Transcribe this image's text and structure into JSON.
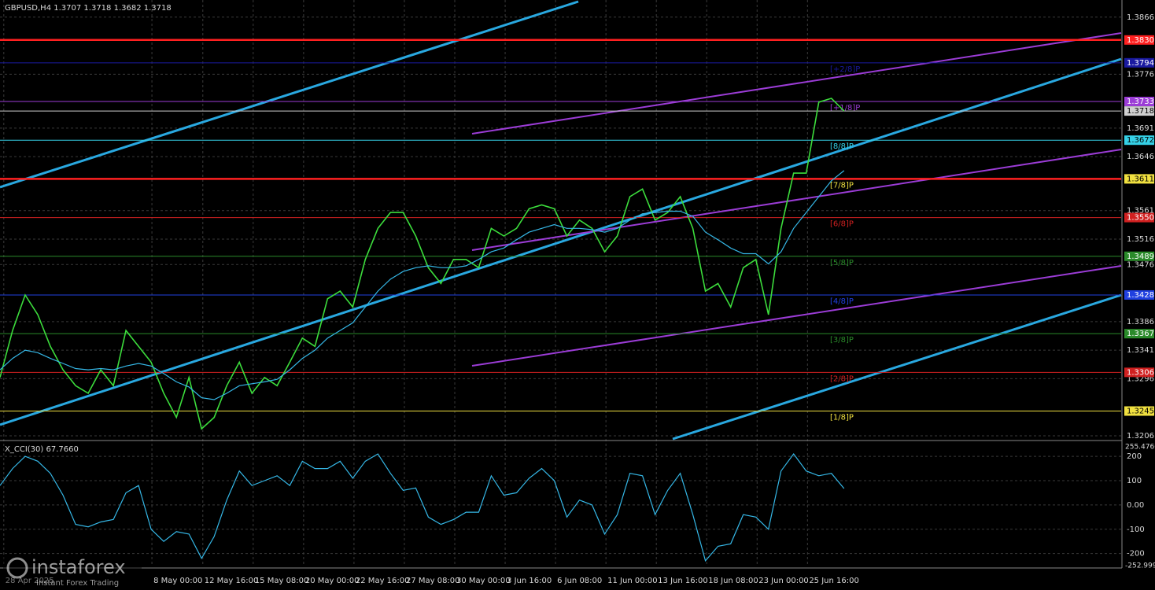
{
  "chart_data": [
    {
      "type": "line",
      "title": "GBPUSD,H4  1.3707 1.3718 1.3682 1.3718",
      "xlim": [
        0,
        89
      ],
      "ylim": [
        1.3201,
        1.3893
      ],
      "yticks": [
        1.3866,
        1.3776,
        1.3691,
        1.3646,
        1.3561,
        1.3516,
        1.3476,
        1.3386,
        1.3341,
        1.3296,
        1.3206
      ],
      "xticks": [
        {
          "value": 0.3,
          "label": "28 Apr 2025"
        },
        {
          "value": 12.06,
          "label": "8 May 00:00"
        },
        {
          "value": 16.1,
          "label": "12 May 16:00"
        },
        {
          "value": 20.1,
          "label": "15 May 08:00"
        },
        {
          "value": 24.1,
          "label": "20 May 00:00"
        },
        {
          "value": 28.1,
          "label": "22 May 16:00"
        },
        {
          "value": 32.1,
          "label": "27 May 08:00"
        },
        {
          "value": 36.1,
          "label": "30 May 00:00"
        },
        {
          "value": 40.1,
          "label": "3 Jun 16:00"
        },
        {
          "value": 44.1,
          "label": "6 Jun 08:00"
        },
        {
          "value": 48.1,
          "label": "11 Jun 00:00"
        },
        {
          "value": 52.1,
          "label": "13 Jun 16:00"
        },
        {
          "value": 56.1,
          "label": "18 Jun 08:00"
        },
        {
          "value": 60.1,
          "label": "23 Jun 00:00"
        },
        {
          "value": 64.1,
          "label": "25 Jun 16:00"
        }
      ],
      "grid": true,
      "x": [
        0,
        1,
        2,
        3,
        4,
        5,
        6,
        7,
        8,
        9,
        10,
        11,
        12,
        13,
        14,
        15,
        16,
        17,
        18,
        19,
        20,
        21,
        22,
        23,
        24,
        25,
        26,
        27,
        28,
        29,
        30,
        31,
        32,
        33,
        34,
        35,
        36,
        37,
        38,
        39,
        40,
        41,
        42,
        43,
        44,
        45,
        46,
        47,
        48,
        49,
        50,
        51,
        52,
        53,
        54,
        55,
        56,
        57,
        58,
        59,
        60,
        61,
        62,
        63,
        64,
        65,
        66,
        67
      ],
      "series": [
        {
          "color": "#3cdc3c",
          "values": [
            1.3298,
            1.3372,
            1.3428,
            1.3397,
            1.3347,
            1.331,
            1.3285,
            1.3273,
            1.331,
            1.3285,
            1.3372,
            1.3347,
            1.3322,
            1.3273,
            1.3235,
            1.3298,
            1.3217,
            1.3235,
            1.3285,
            1.3322,
            1.3273,
            1.3298,
            1.3285,
            1.3322,
            1.336,
            1.3347,
            1.3422,
            1.3434,
            1.3409,
            1.3484,
            1.3533,
            1.3558,
            1.3558,
            1.3521,
            1.3471,
            1.3446,
            1.3484,
            1.3484,
            1.3471,
            1.3533,
            1.3521,
            1.3533,
            1.3564,
            1.357,
            1.3564,
            1.3521,
            1.3546,
            1.3533,
            1.3496,
            1.3521,
            1.3583,
            1.3595,
            1.3546,
            1.3558,
            1.3583,
            1.3533,
            1.3434,
            1.3446,
            1.3409,
            1.3471,
            1.3484,
            1.3397,
            1.3533,
            1.362,
            1.362,
            1.3732,
            1.3738,
            1.3718
          ]
        },
        {
          "color": "#35b7e6",
          "values": [
            1.331,
            1.3328,
            1.3341,
            1.3337,
            1.3328,
            1.332,
            1.3312,
            1.331,
            1.3312,
            1.331,
            1.3316,
            1.332,
            1.3316,
            1.3304,
            1.3291,
            1.3283,
            1.3266,
            1.3263,
            1.3273,
            1.3285,
            1.3288,
            1.3291,
            1.3295,
            1.331,
            1.3328,
            1.3341,
            1.336,
            1.3372,
            1.3384,
            1.3409,
            1.3434,
            1.3453,
            1.3465,
            1.3471,
            1.3474,
            1.3471,
            1.3471,
            1.3474,
            1.3484,
            1.3496,
            1.3502,
            1.3515,
            1.3527,
            1.3533,
            1.3539,
            1.3533,
            1.3533,
            1.3531,
            1.3527,
            1.3533,
            1.3546,
            1.3556,
            1.3558,
            1.356,
            1.356,
            1.3552,
            1.3527,
            1.3515,
            1.3502,
            1.3493,
            1.3493,
            1.3477,
            1.3496,
            1.3533,
            1.3558,
            1.3583,
            1.3608,
            1.3624
          ]
        }
      ],
      "levels": [
        {
          "value": 1.383,
          "value_label": "1.3830",
          "color": "#ff2020",
          "thick": true
        },
        {
          "value": 1.3794,
          "color": "#1a1aa0",
          "label": "[+2/8]P"
        },
        {
          "value": 1.3733,
          "color": "#9b3cd6",
          "label": "[+1/8]P"
        },
        {
          "value": 1.3718,
          "color": "#d0d0d0"
        },
        {
          "value": 1.3672,
          "color": "#35d0e6",
          "label": "[8/8]P"
        },
        {
          "value": 1.3611,
          "color": "#f0e040",
          "line_color": "#ff2020",
          "thick": true,
          "label": "[7/8]P"
        },
        {
          "value": 1.355,
          "value_label": "1.3550",
          "color": "#d02020",
          "label": "[6/8]P"
        },
        {
          "value": 1.3489,
          "color": "#2a8a2a",
          "label": "[5/8]P"
        },
        {
          "value": 1.3428,
          "color": "#2040e0",
          "label": "[4/8]P"
        },
        {
          "value": 1.3367,
          "color": "#2a8a2a",
          "label": "[3/8]P"
        },
        {
          "value": 1.3306,
          "color": "#d02020",
          "label": "[2/8]P"
        },
        {
          "value": 1.3245,
          "color": "#f0e040",
          "label": "[1/8]P"
        }
      ]
    },
    {
      "type": "line",
      "title": "X_CCI(30) 67.7660",
      "xlim": [
        0,
        89
      ],
      "ylim": [
        -252.9996,
        255.4766
      ],
      "yticks": [
        200,
        100,
        {
          "value": 0,
          "label": "0.00"
        },
        -100,
        -200
      ],
      "x": [
        0,
        1,
        2,
        3,
        4,
        5,
        6,
        7,
        8,
        9,
        10,
        11,
        12,
        13,
        14,
        15,
        16,
        17,
        18,
        19,
        20,
        21,
        22,
        23,
        24,
        25,
        26,
        27,
        28,
        29,
        30,
        31,
        32,
        33,
        34,
        35,
        36,
        37,
        38,
        39,
        40,
        41,
        42,
        43,
        44,
        45,
        46,
        47,
        48,
        49,
        50,
        51,
        52,
        53,
        54,
        55,
        56,
        57,
        58,
        59,
        60,
        61,
        62,
        63,
        64,
        65,
        66,
        67
      ],
      "series": [
        {
          "color": "#35b7e6",
          "values": [
            80,
            150,
            200,
            180,
            130,
            40,
            -80,
            -90,
            -70,
            -60,
            50,
            80,
            -100,
            -150,
            -110,
            -120,
            -220,
            -130,
            20,
            140,
            80,
            100,
            120,
            80,
            180,
            150,
            150,
            180,
            110,
            180,
            210,
            130,
            60,
            70,
            -50,
            -80,
            -60,
            -30,
            -30,
            120,
            40,
            50,
            110,
            150,
            100,
            -50,
            20,
            0,
            -120,
            -40,
            130,
            120,
            -40,
            60,
            130,
            -40,
            -230,
            -170,
            -160,
            -40,
            -50,
            -100,
            140,
            210,
            140,
            120,
            130,
            67.766
          ]
        }
      ]
    }
  ],
  "watermark": {
    "brand": "instaforex",
    "tagline": "Instant Forex Trading"
  }
}
